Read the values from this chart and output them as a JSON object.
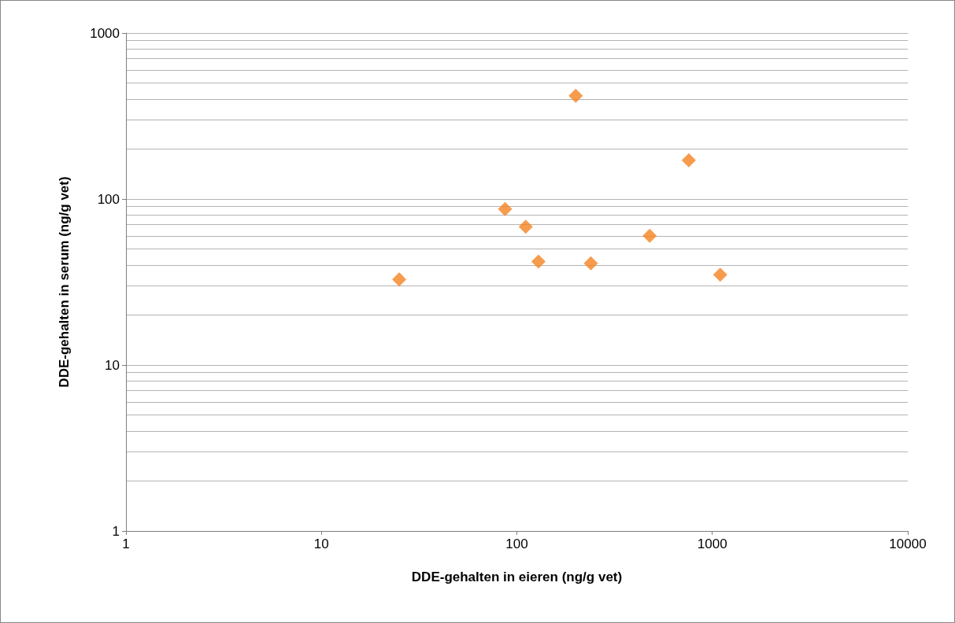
{
  "chart_data": {
    "type": "scatter",
    "xlabel": "DDE-gehalten in eieren (ng/g vet)",
    "ylabel": "DDE-gehalten in serum (ng/g vet)",
    "x": [
      25,
      87,
      111,
      129,
      200,
      239,
      478,
      758,
      1097
    ],
    "series": [
      {
        "color": "#f58220",
        "values": [
          32.8,
          87,
          68,
          42,
          419,
          41,
          60,
          171,
          35
        ]
      }
    ],
    "log": "xy",
    "marker": "diamond",
    "grid": "y",
    "xlim": [
      1,
      10000
    ],
    "xticks": [
      1,
      10,
      100,
      1000,
      10000
    ],
    "ylim": [
      1,
      1000
    ],
    "yticks": [
      1,
      {
        "value": 2,
        "label": null
      },
      {
        "value": 3,
        "label": null
      },
      {
        "value": 4,
        "label": null
      },
      {
        "value": 5,
        "label": null
      },
      {
        "value": 6,
        "label": null
      },
      {
        "value": 7,
        "label": null
      },
      {
        "value": 8,
        "label": null
      },
      {
        "value": 9,
        "label": null
      },
      10,
      {
        "value": 20,
        "label": null
      },
      {
        "value": 30,
        "label": null
      },
      {
        "value": 40,
        "label": null
      },
      {
        "value": 50,
        "label": null
      },
      {
        "value": 60,
        "label": null
      },
      {
        "value": 70,
        "label": null
      },
      {
        "value": 80,
        "label": null
      },
      {
        "value": 90,
        "label": null
      },
      100,
      {
        "value": 200,
        "label": null
      },
      {
        "value": 300,
        "label": null
      },
      {
        "value": 400,
        "label": null
      },
      {
        "value": 500,
        "label": null
      },
      {
        "value": 600,
        "label": null
      },
      {
        "value": 700,
        "label": null
      },
      {
        "value": 800,
        "label": null
      },
      {
        "value": 900,
        "label": null
      },
      1000
    ]
  }
}
